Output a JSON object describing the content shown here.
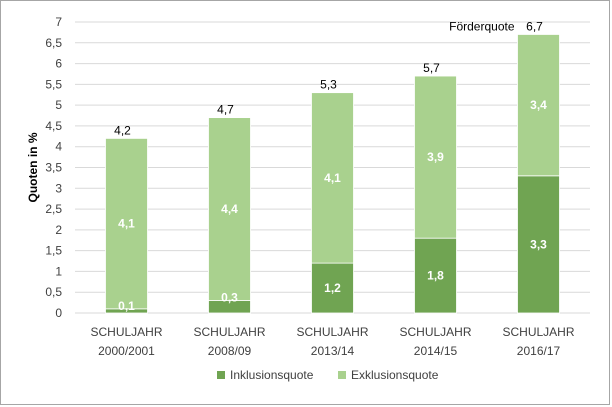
{
  "chart_data": {
    "type": "bar",
    "stacked": true,
    "ylabel": "Quoten in %",
    "ylim": [
      0,
      7
    ],
    "yticks": [
      "0",
      "0,5",
      "1",
      "1,5",
      "2",
      "2,5",
      "3",
      "3,5",
      "4",
      "4,5",
      "5",
      "5,5",
      "6",
      "6,5",
      "7"
    ],
    "grid": true,
    "legend_position": "bottom",
    "categories": [
      [
        "SCHULJAHR",
        "2000/2001"
      ],
      [
        "SCHULJAHR",
        "2008/09"
      ],
      [
        "SCHULJAHR",
        "2013/14"
      ],
      [
        "SCHULJAHR",
        "2014/15"
      ],
      [
        "SCHULJAHR",
        "2016/17"
      ]
    ],
    "series": [
      {
        "name": "Inklusionsquote",
        "color": "#70a452",
        "values": [
          0.1,
          0.3,
          1.2,
          1.8,
          3.3
        ],
        "labels": [
          "0,1",
          "0,3",
          "1,2",
          "1,8",
          "3,3"
        ]
      },
      {
        "name": "Exklusionsquote",
        "color": "#a9d18e",
        "values": [
          4.1,
          4.4,
          4.1,
          3.9,
          3.4
        ],
        "labels": [
          "4,1",
          "4,4",
          "4,1",
          "3,9",
          "3,4"
        ]
      }
    ],
    "totals": {
      "values": [
        4.2,
        4.7,
        5.3,
        5.7,
        6.7
      ],
      "labels": [
        "4,2",
        "4,7",
        "5,3",
        "5,7",
        "6,7"
      ]
    },
    "annotation": "Förderquote"
  }
}
